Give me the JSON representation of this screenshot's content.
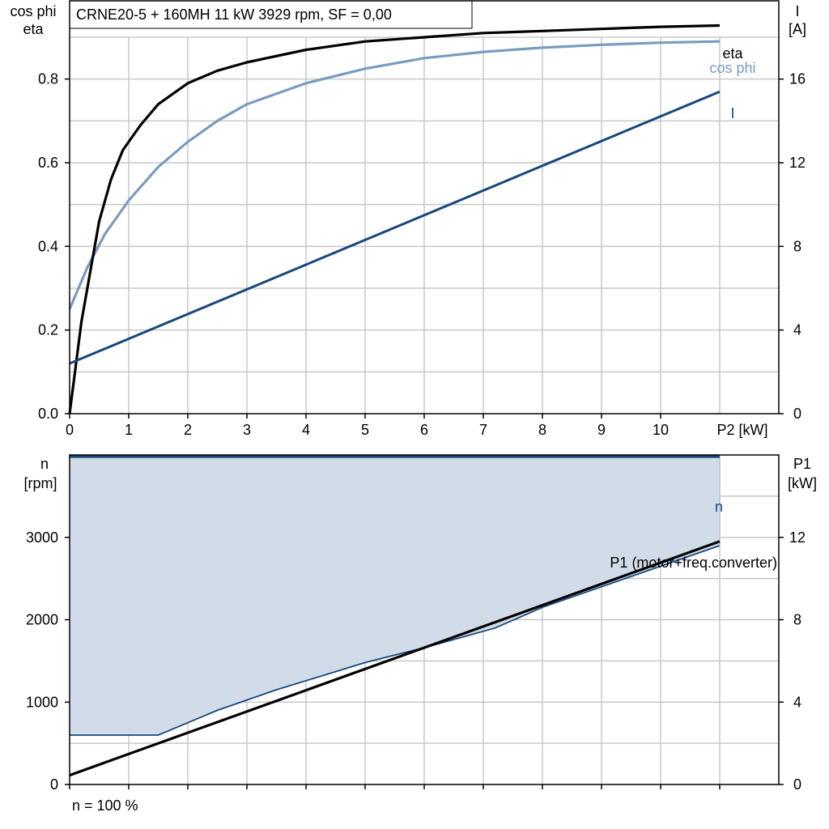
{
  "title": "CRNE20-5 + 160MH   11 kW   3929 rpm, SF = 0,00",
  "footer": "n = 100 %",
  "colors": {
    "eta": "#000000",
    "cos_phi": "#7a9bbf",
    "current": "#17477a",
    "speed": "#17477a",
    "p1_motor": "#000000",
    "p1_area": "#d1dce8"
  },
  "chart_data": [
    {
      "type": "line",
      "left_axis": {
        "label_line1": "cos phi",
        "label_line2": "eta",
        "ylim": [
          0,
          0.9
        ],
        "ticks": [
          "0.0",
          "0.2",
          "0.4",
          "0.6",
          "0.8"
        ]
      },
      "right_axis": {
        "label_line1": "I",
        "label_line2": "[A]",
        "ylim": [
          0,
          18
        ],
        "ticks": [
          "0",
          "4",
          "8",
          "12",
          "16"
        ]
      },
      "x_axis": {
        "label": "P2 [kW]",
        "xlim": [
          0,
          12
        ],
        "ticks": [
          "0",
          "1",
          "2",
          "3",
          "4",
          "5",
          "6",
          "7",
          "8",
          "9",
          "10"
        ]
      },
      "grid": true,
      "series": [
        {
          "name": "eta",
          "axis": "left",
          "x": [
            0,
            0.2,
            0.5,
            0.7,
            0.9,
            1.2,
            1.5,
            2,
            2.5,
            3,
            4,
            5,
            6,
            7,
            8,
            9,
            10,
            11
          ],
          "y": [
            0,
            0.22,
            0.46,
            0.56,
            0.63,
            0.69,
            0.74,
            0.79,
            0.82,
            0.84,
            0.87,
            0.89,
            0.9,
            0.91,
            0.915,
            0.92,
            0.925,
            0.928
          ]
        },
        {
          "name": "cos phi",
          "axis": "left",
          "x": [
            0,
            0.3,
            0.6,
            1,
            1.5,
            2,
            2.5,
            3,
            4,
            5,
            6,
            7,
            8,
            9,
            10,
            11
          ],
          "y": [
            0.25,
            0.35,
            0.43,
            0.51,
            0.59,
            0.65,
            0.7,
            0.74,
            0.79,
            0.825,
            0.85,
            0.865,
            0.875,
            0.882,
            0.887,
            0.89
          ]
        },
        {
          "name": "I",
          "axis": "right",
          "x": [
            0,
            11
          ],
          "y": [
            2.4,
            15.4
          ]
        }
      ]
    },
    {
      "type": "area",
      "left_axis": {
        "label_line1": "n",
        "label_line2": "[rpm]",
        "ylim": [
          0,
          4000
        ],
        "ticks": [
          "0",
          "1000",
          "2000",
          "3000"
        ]
      },
      "right_axis": {
        "label_line1": "P1",
        "label_line2": "[kW]",
        "ylim": [
          0,
          16
        ],
        "ticks": [
          "0",
          "4",
          "8",
          "12"
        ]
      },
      "x_axis": {
        "xlim": [
          0,
          12
        ]
      },
      "grid": true,
      "series": [
        {
          "name": "n",
          "axis": "left",
          "x": [
            0,
            11
          ],
          "y": [
            3980,
            3980
          ]
        },
        {
          "name": "P1 (motor+freq.converter)",
          "axis": "right",
          "x": [
            0,
            11
          ],
          "y": [
            0.45,
            11.8
          ]
        },
        {
          "name": "",
          "axis": "left",
          "x": [
            0,
            1.5,
            2.5,
            3.5,
            5,
            6,
            7.2,
            8,
            9,
            10,
            11
          ],
          "y": [
            600,
            600,
            900,
            1150,
            1480,
            1660,
            1900,
            2150,
            2400,
            2650,
            2900
          ]
        }
      ]
    }
  ]
}
